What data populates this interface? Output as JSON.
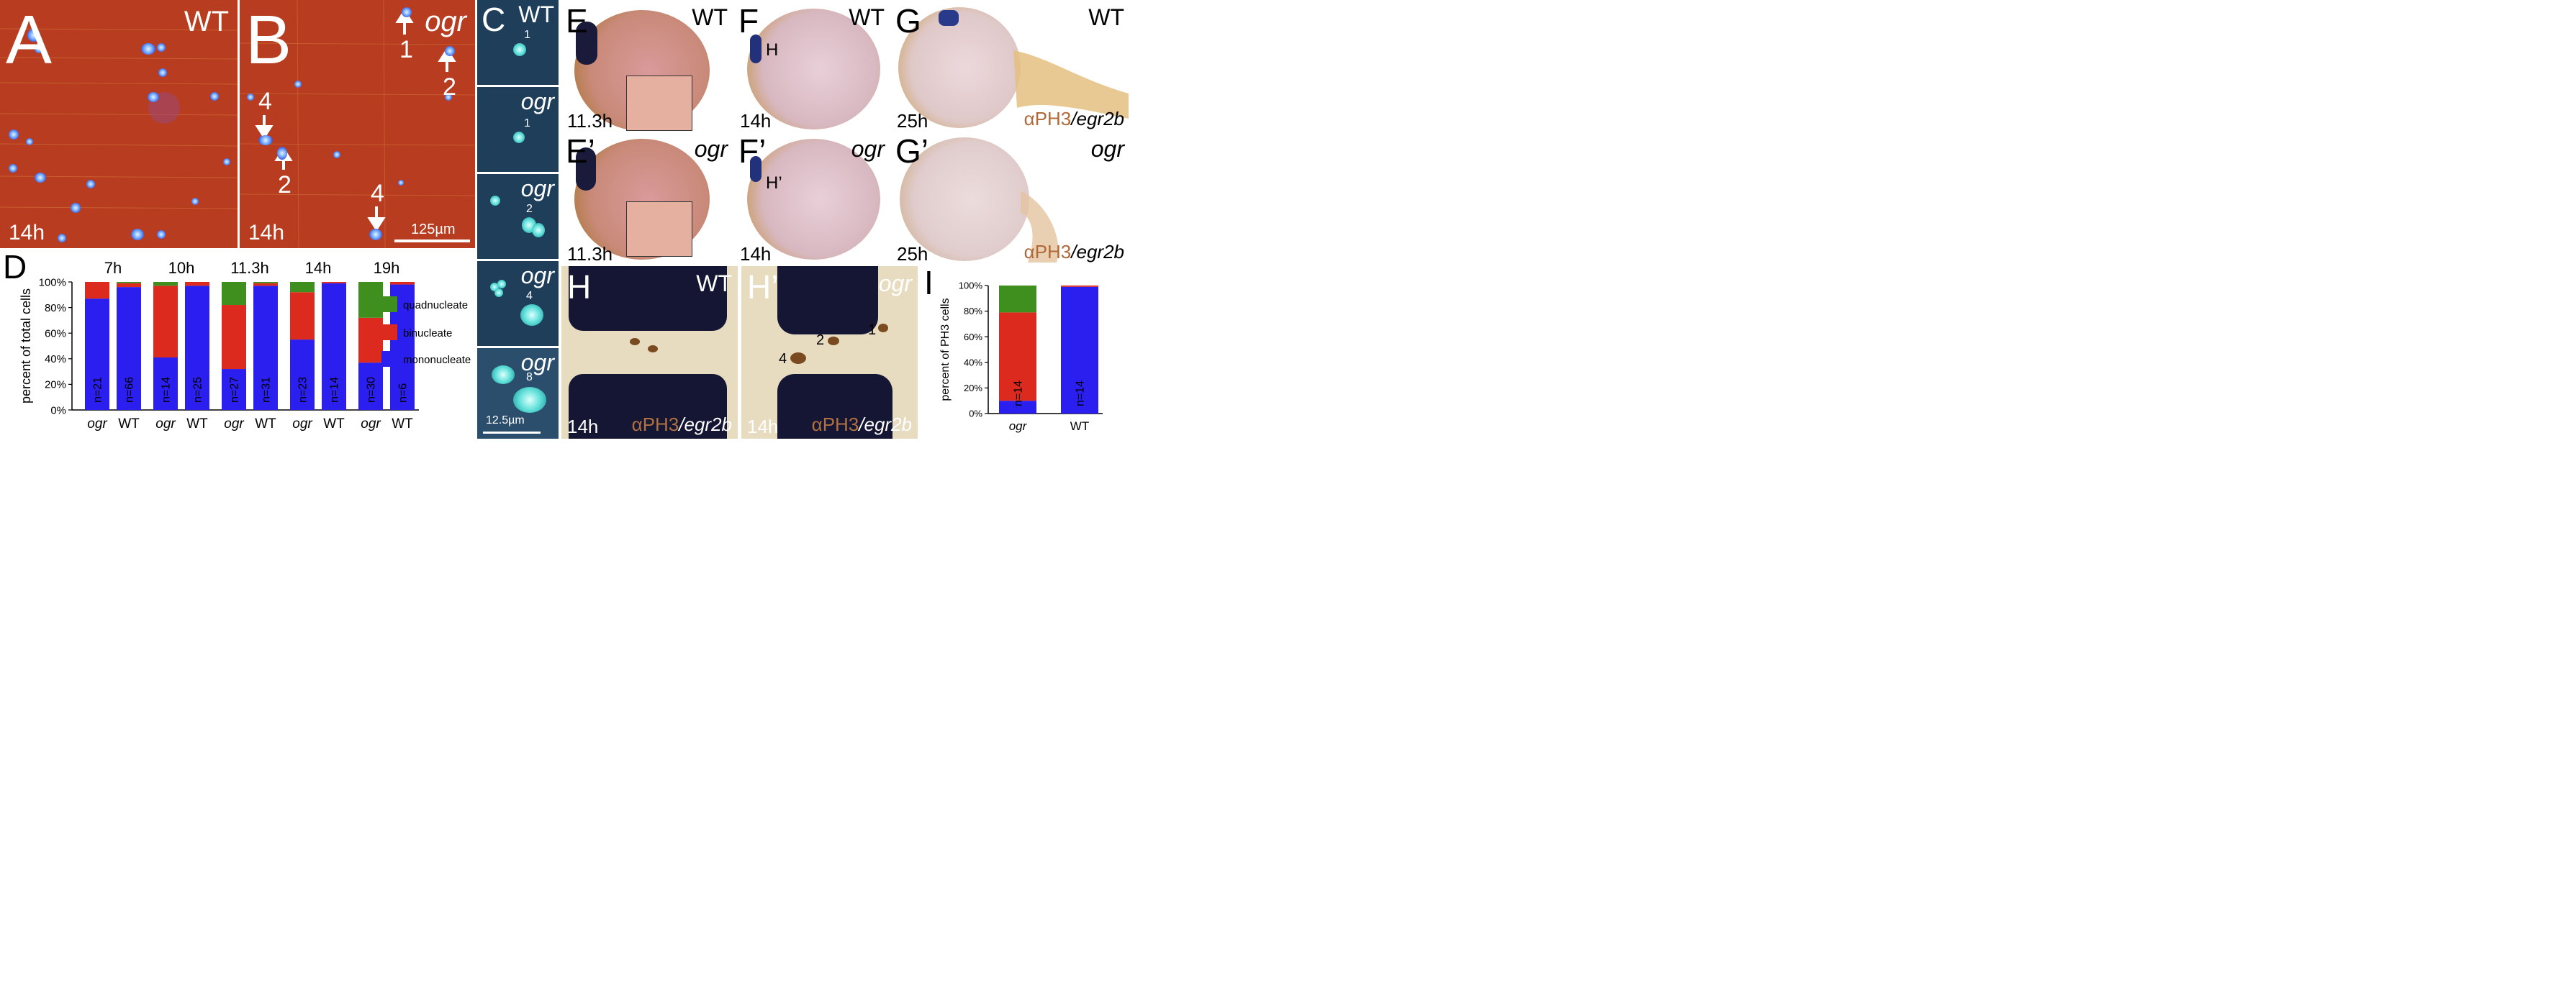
{
  "panels": {
    "A": {
      "label": "A",
      "genotype": "WT",
      "time": "14h",
      "bg": "#b33a1e"
    },
    "B": {
      "label": "B",
      "genotype": "ogr",
      "time": "14h",
      "scalebar": "125µm",
      "arrows": [
        "1",
        "2",
        "4",
        "2",
        "4"
      ]
    },
    "C": {
      "label": "C",
      "scalebar": "12.5µm",
      "rows": [
        {
          "genotype": "WT",
          "num": "1"
        },
        {
          "genotype": "ogr",
          "num": "1"
        },
        {
          "genotype": "ogr",
          "num": "2"
        },
        {
          "genotype": "ogr",
          "num": "4"
        },
        {
          "genotype": "ogr",
          "num": "8"
        }
      ]
    },
    "E": {
      "label": "E",
      "genotype": "WT",
      "time": "11.3h"
    },
    "E2": {
      "label": "E’",
      "genotype": "ogr",
      "time": "11.3h"
    },
    "F": {
      "label": "F",
      "genotype": "WT",
      "time": "14h",
      "inner": "H"
    },
    "F2": {
      "label": "F’",
      "genotype": "ogr",
      "time": "14h",
      "inner": "H’"
    },
    "G": {
      "label": "G",
      "genotype": "WT",
      "time": "25h",
      "stain_a": "αPH3",
      "stain_b": "/egr2b"
    },
    "G2": {
      "label": "G’",
      "genotype": "ogr",
      "time": "25h",
      "stain_a": "αPH3",
      "stain_b": "/egr2b"
    },
    "H": {
      "label": "H",
      "genotype": "WT",
      "time": "14h",
      "stain_a": "αPH3",
      "stain_b": "/egr2b"
    },
    "H2": {
      "label": "H’",
      "genotype": "ogr",
      "time": "14h",
      "stain_a": "αPH3",
      "stain_b": "/egr2b",
      "marks": [
        "2",
        "1",
        "4"
      ]
    },
    "D": {
      "label": "D"
    },
    "I": {
      "label": "I"
    }
  },
  "colors": {
    "quadnucleate": "#3f8f1f",
    "binucleate": "#dd2a1f",
    "mononucleate": "#2a1fee"
  },
  "chart_data": [
    {
      "type": "bar",
      "stacked": true,
      "panel": "D",
      "ylabel": "percent of total cells",
      "yticks": [
        "0%",
        "20%",
        "40%",
        "60%",
        "80%",
        "100%"
      ],
      "ylim": [
        0,
        100
      ],
      "groups": [
        "7h",
        "10h",
        "11.3h",
        "14h",
        "19h"
      ],
      "categories": [
        "ogr",
        "WT",
        "ogr",
        "WT",
        "ogr",
        "WT",
        "ogr",
        "WT",
        "ogr",
        "WT"
      ],
      "n_labels": [
        "n=21",
        "n=66",
        "n=14",
        "n=25",
        "n=27",
        "n=31",
        "n=23",
        "n=14",
        "n=30",
        "n=6"
      ],
      "series": [
        {
          "name": "mononucleate",
          "values": [
            87,
            96,
            41,
            97,
            32,
            97,
            55,
            99,
            37,
            98
          ]
        },
        {
          "name": "binucleate",
          "values": [
            13,
            3,
            56,
            3,
            50,
            2,
            37,
            1,
            35,
            2
          ]
        },
        {
          "name": "quadnucleate",
          "values": [
            0,
            1,
            3,
            0,
            18,
            1,
            8,
            0,
            28,
            0
          ]
        }
      ],
      "legend": [
        "quadnucleate",
        "binucleate",
        "mononucleate"
      ],
      "legend_position": "right"
    },
    {
      "type": "bar",
      "stacked": true,
      "panel": "I",
      "ylabel": "percent of PH3 cells",
      "yticks": [
        "0%",
        "20%",
        "40%",
        "60%",
        "80%",
        "100%"
      ],
      "ylim": [
        0,
        100
      ],
      "categories": [
        "ogr",
        "WT"
      ],
      "n_labels": [
        "n=14",
        "n=14"
      ],
      "series": [
        {
          "name": "mononucleate",
          "values": [
            10,
            99
          ]
        },
        {
          "name": "binucleate",
          "values": [
            69,
            1
          ]
        },
        {
          "name": "quadnucleate",
          "values": [
            21,
            0
          ]
        }
      ]
    }
  ]
}
